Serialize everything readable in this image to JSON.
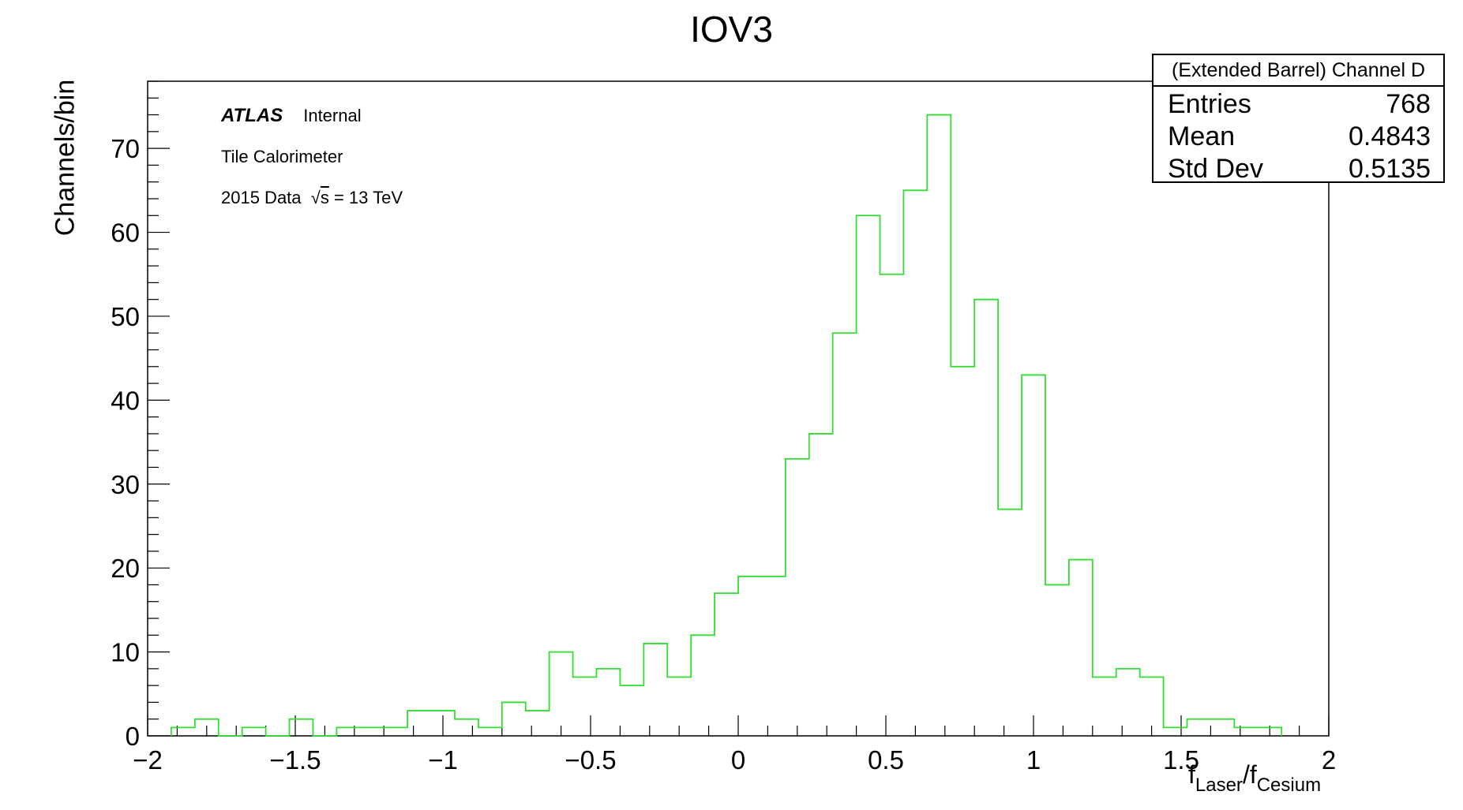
{
  "chart_data": {
    "type": "bar",
    "title": "IOV3",
    "ylabel": "Channels/bin",
    "xlabel": {
      "main": "f",
      "sub1": "Laser",
      "mid": "/f",
      "sub2": "Cesium"
    },
    "xlim": [
      -2,
      2
    ],
    "ylim": [
      0,
      78
    ],
    "xticks": [
      -2,
      -1.5,
      -1,
      -0.5,
      0,
      0.5,
      1,
      1.5,
      2
    ],
    "xtick_labels": [
      "−2",
      "−1.5",
      "−1",
      "−0.5",
      "0",
      "0.5",
      "1",
      "1.5",
      "2"
    ],
    "yticks": [
      0,
      10,
      20,
      30,
      40,
      50,
      60,
      70
    ],
    "yticklabels": [
      "0",
      "10",
      "20",
      "30",
      "40",
      "50",
      "60",
      "70"
    ],
    "grid": false,
    "bin_width": 0.08,
    "bin_edges_start": -1.92,
    "bin_counts": [
      1,
      2,
      0,
      1,
      0,
      2,
      0,
      1,
      1,
      1,
      3,
      3,
      2,
      1,
      4,
      3,
      10,
      7,
      8,
      6,
      11,
      7,
      12,
      17,
      19,
      19,
      33,
      36,
      48,
      62,
      55,
      65,
      74,
      44,
      52,
      27,
      43,
      18,
      21,
      7,
      8,
      7,
      1,
      2,
      2,
      1,
      1
    ],
    "line_color": "#33dd33",
    "annotations": {
      "atlas": "ATLAS",
      "internal": "Internal",
      "detector": "Tile Calorimeter",
      "data_prefix": "2015 Data",
      "sqrt_symbol": "√",
      "sqrt_arg": "s",
      "energy": "= 13 TeV"
    },
    "stats_box": {
      "title": "(Extended Barrel) Channel D",
      "rows": [
        {
          "label": "Entries",
          "value": "768"
        },
        {
          "label": "Mean",
          "value": "0.4843"
        },
        {
          "label": "Std Dev",
          "value": "0.5135"
        }
      ]
    }
  }
}
